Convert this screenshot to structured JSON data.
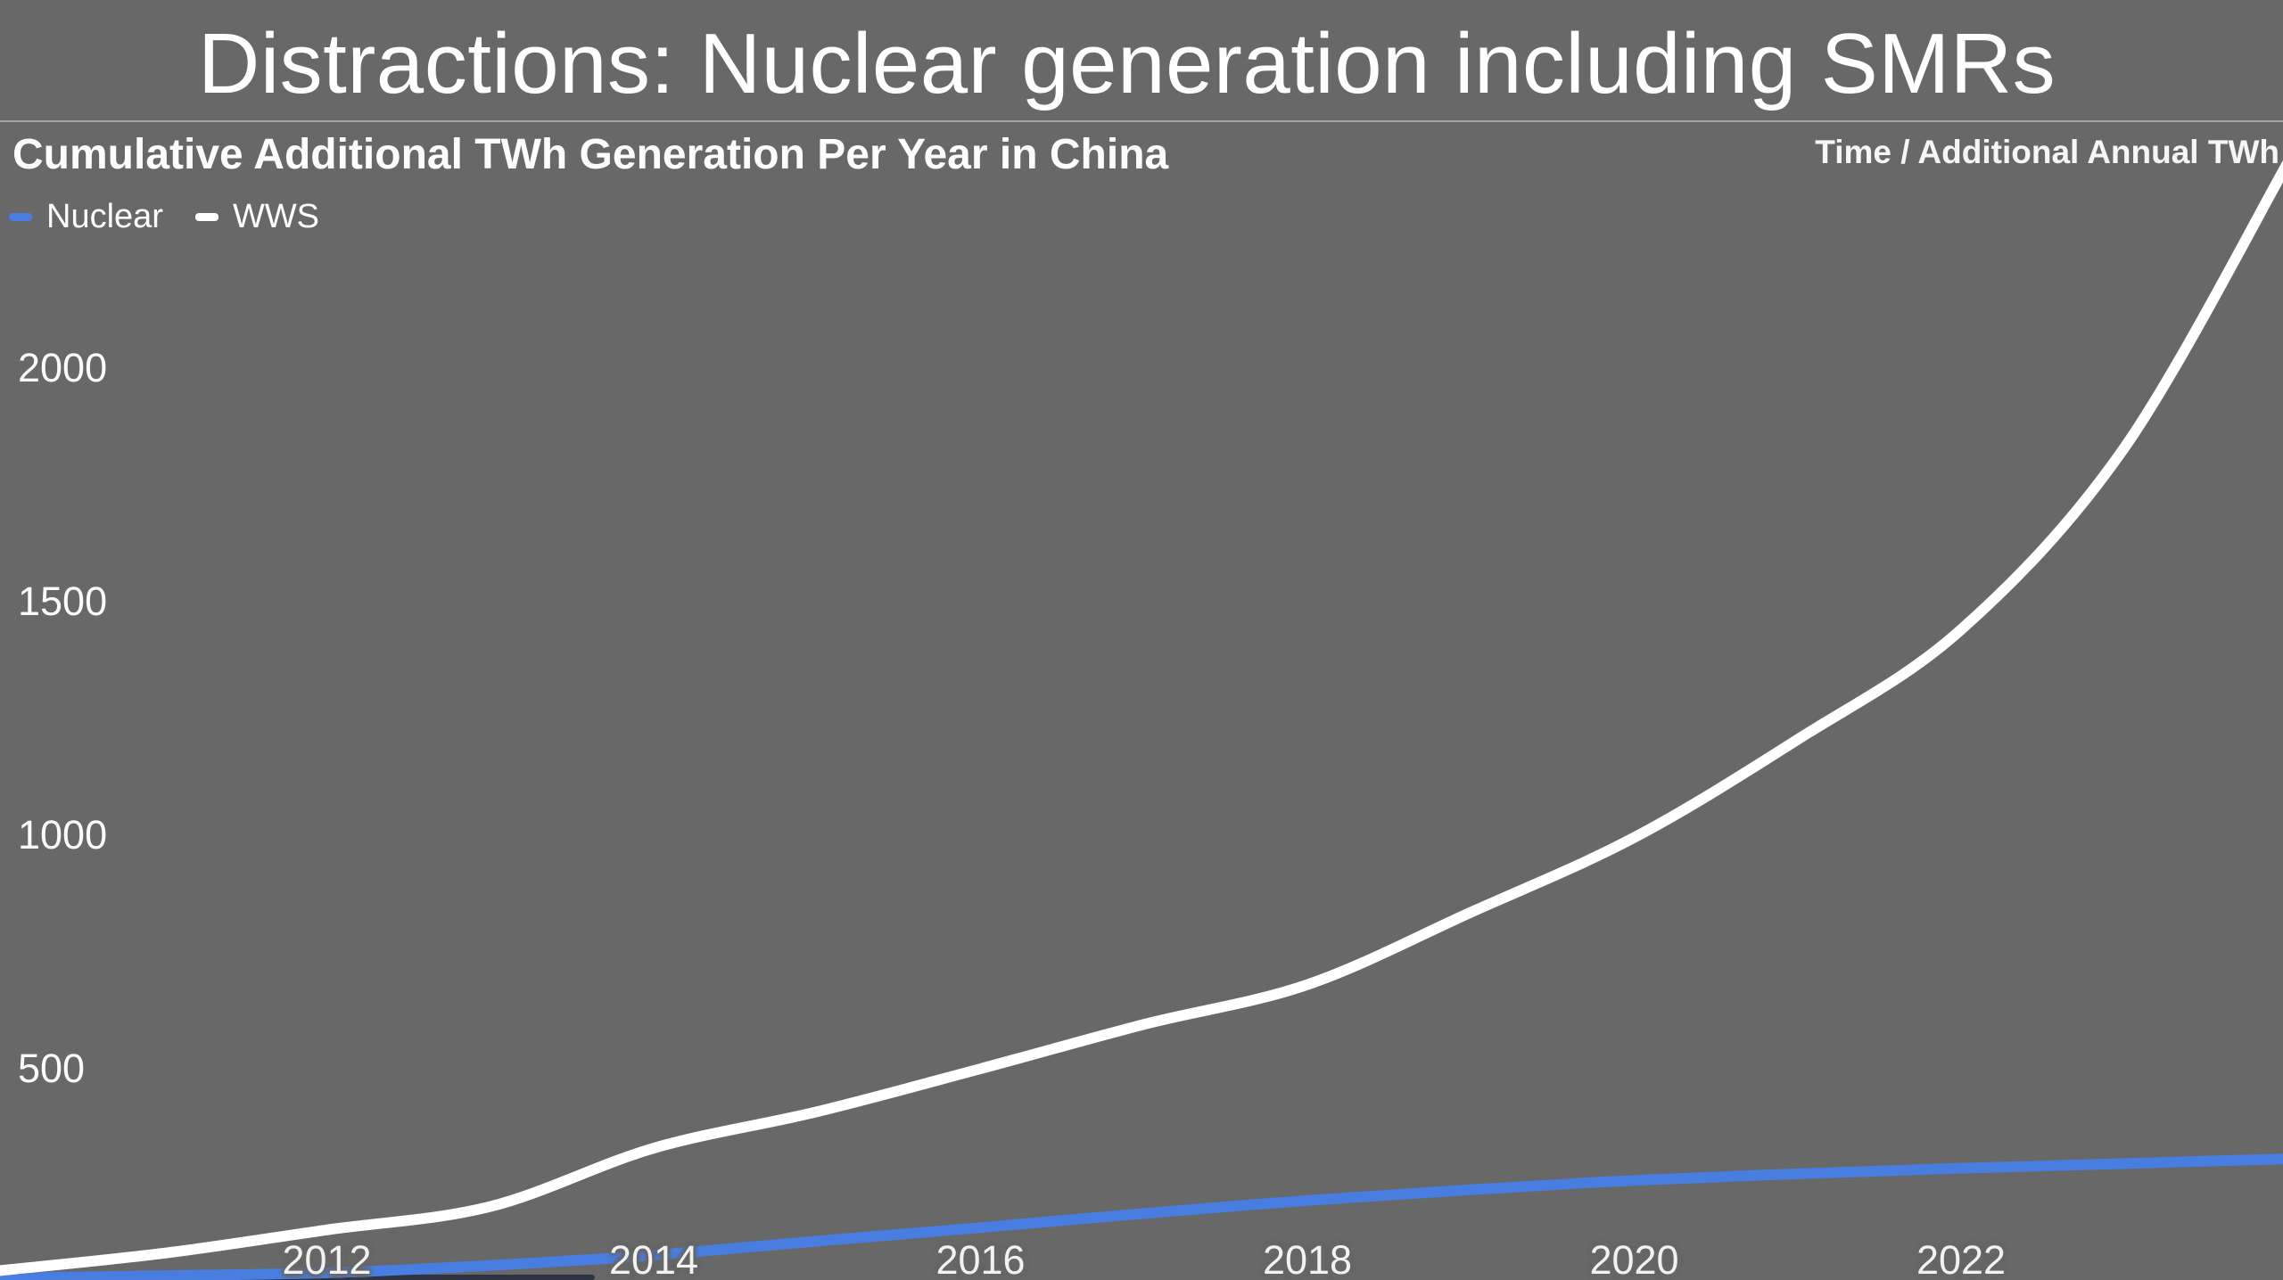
{
  "header": {
    "title": "Distractions: Nuclear generation including SMRs"
  },
  "chart": {
    "title": "Cumulative Additional TWh Generation Per Year in China",
    "axis_note": "Time / Additional Annual TWh",
    "legend": [
      {
        "label": "Nuclear",
        "color": "#4a7de0"
      },
      {
        "label": "WWS",
        "color": "#ffffff"
      }
    ]
  },
  "colors": {
    "background": "#686868",
    "divider": "rgba(255,255,255,0.38)",
    "text": "#ffffff",
    "nuclear_line": "#4a7de0",
    "wws_line": "#ffffff",
    "bottom_strip": "#2d3340"
  },
  "chart_data": {
    "type": "line",
    "title": "Cumulative Additional TWh Generation Per Year in China",
    "xlabel": "Time",
    "ylabel": "Additional Annual TWh",
    "x": [
      2010,
      2011,
      2012,
      2013,
      2014,
      2015,
      2016,
      2017,
      2018,
      2019,
      2020,
      2021,
      2022,
      2023,
      2024
    ],
    "series": [
      {
        "name": "Nuclear",
        "color": "#4a7de0",
        "values": [
          52,
          57,
          63,
          79,
          101,
          131,
          160,
          190,
          218,
          241,
          261,
          275,
          287,
          297,
          307
        ]
      },
      {
        "name": "WWS",
        "color": "#ffffff",
        "values": [
          68,
          105,
          155,
          205,
          330,
          408,
          500,
          595,
          680,
          835,
          995,
          1205,
          1440,
          1830,
          2440
        ]
      }
    ],
    "x_ticks": [
      2012,
      2014,
      2016,
      2018,
      2020,
      2022
    ],
    "y_ticks": [
      500,
      1000,
      1500,
      2000
    ],
    "xlim": [
      2010,
      2024
    ],
    "ylim": [
      0,
      2790
    ],
    "grid": false,
    "legend_position": "top-left"
  }
}
